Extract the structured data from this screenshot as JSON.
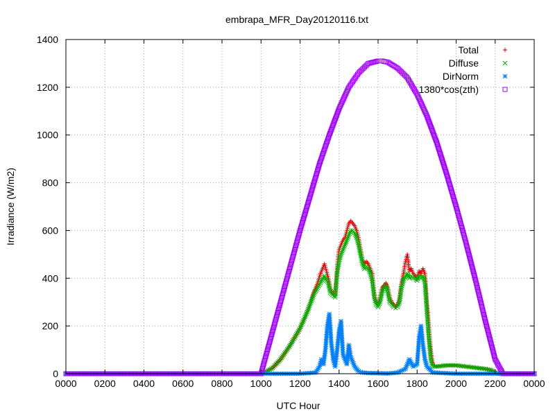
{
  "chart_data": {
    "type": "scatter",
    "title": "embrapa_MFR_Day20120116.txt",
    "xlabel": "UTC Hour",
    "ylabel": "Irradiance (W/m2)",
    "xlim": [
      0,
      2400
    ],
    "ylim": [
      0,
      1400
    ],
    "grid": true,
    "legend_position": "top-right",
    "x_ticks": [
      "0000",
      "0200",
      "0400",
      "0600",
      "0800",
      "1000",
      "1200",
      "1400",
      "1600",
      "1800",
      "2000",
      "2200",
      "0000"
    ],
    "y_ticks": [
      "0",
      "200",
      "400",
      "600",
      "800",
      "1000",
      "1200",
      "1400"
    ],
    "series": [
      {
        "name": "Total",
        "marker": "+",
        "color": "#e00000",
        "x": [
          0,
          1000,
          1030,
          1060,
          1100,
          1150,
          1200,
          1240,
          1270,
          1290,
          1305,
          1315,
          1325,
          1335,
          1345,
          1355,
          1365,
          1380,
          1390,
          1400,
          1410,
          1420,
          1430,
          1440,
          1450,
          1460,
          1470,
          1480,
          1490,
          1500,
          1510,
          1520,
          1530,
          1540,
          1550,
          1560,
          1570,
          1580,
          1590,
          1600,
          1610,
          1620,
          1630,
          1640,
          1650,
          1660,
          1670,
          1680,
          1690,
          1700,
          1710,
          1720,
          1730,
          1740,
          1750,
          1760,
          1770,
          1780,
          1790,
          1800,
          1810,
          1820,
          1830,
          1840,
          1850,
          1860,
          1870,
          1880,
          1890,
          1900,
          1950,
          2000,
          2050,
          2100,
          2150,
          2180,
          2200,
          2220,
          2400
        ],
        "y": [
          0,
          0,
          10,
          25,
          60,
          120,
          190,
          270,
          340,
          380,
          420,
          440,
          460,
          430,
          400,
          360,
          340,
          330,
          450,
          520,
          540,
          560,
          570,
          600,
          630,
          640,
          630,
          620,
          600,
          570,
          520,
          480,
          460,
          470,
          460,
          440,
          420,
          340,
          300,
          290,
          320,
          360,
          370,
          380,
          360,
          320,
          300,
          290,
          280,
          290,
          320,
          380,
          420,
          470,
          500,
          430,
          440,
          420,
          410,
          400,
          430,
          420,
          440,
          420,
          300,
          200,
          100,
          40,
          35,
          30,
          35,
          35,
          30,
          25,
          20,
          15,
          5,
          0,
          0
        ]
      },
      {
        "name": "Diffuse",
        "marker": "x",
        "color": "#00b000",
        "x": [
          0,
          1000,
          1030,
          1060,
          1100,
          1150,
          1200,
          1240,
          1270,
          1290,
          1305,
          1315,
          1325,
          1335,
          1345,
          1355,
          1365,
          1380,
          1390,
          1400,
          1410,
          1420,
          1430,
          1440,
          1450,
          1460,
          1470,
          1480,
          1490,
          1500,
          1510,
          1520,
          1530,
          1540,
          1550,
          1560,
          1570,
          1580,
          1590,
          1600,
          1610,
          1620,
          1630,
          1640,
          1650,
          1660,
          1670,
          1680,
          1690,
          1700,
          1710,
          1720,
          1730,
          1740,
          1750,
          1760,
          1770,
          1780,
          1790,
          1800,
          1810,
          1820,
          1830,
          1840,
          1850,
          1860,
          1870,
          1880,
          1890,
          1900,
          1950,
          2000,
          2050,
          2100,
          2150,
          2180,
          2200,
          2220,
          2400
        ],
        "y": [
          0,
          0,
          10,
          25,
          60,
          120,
          190,
          265,
          330,
          360,
          380,
          400,
          410,
          390,
          380,
          340,
          330,
          320,
          420,
          470,
          500,
          520,
          540,
          560,
          580,
          600,
          600,
          590,
          570,
          540,
          500,
          460,
          440,
          450,
          440,
          420,
          390,
          320,
          290,
          280,
          300,
          340,
          360,
          370,
          340,
          300,
          290,
          280,
          275,
          280,
          300,
          360,
          390,
          410,
          420,
          400,
          410,
          400,
          400,
          390,
          410,
          400,
          410,
          380,
          260,
          150,
          60,
          30,
          30,
          30,
          35,
          35,
          30,
          25,
          20,
          15,
          5,
          0,
          0
        ]
      },
      {
        "name": "DirNorm",
        "marker": "*",
        "color": "#0080ff",
        "x": [
          0,
          1000,
          1100,
          1200,
          1280,
          1300,
          1310,
          1320,
          1330,
          1340,
          1350,
          1360,
          1370,
          1380,
          1390,
          1400,
          1410,
          1420,
          1430,
          1440,
          1450,
          1460,
          1470,
          1480,
          1490,
          1500,
          1520,
          1550,
          1600,
          1650,
          1700,
          1740,
          1760,
          1780,
          1800,
          1810,
          1820,
          1830,
          1840,
          1850,
          1880,
          2000,
          2200,
          2400
        ],
        "y": [
          0,
          0,
          0,
          0,
          5,
          30,
          60,
          40,
          100,
          200,
          250,
          130,
          60,
          30,
          100,
          180,
          220,
          80,
          60,
          40,
          120,
          70,
          50,
          30,
          20,
          10,
          5,
          3,
          2,
          1,
          5,
          20,
          60,
          30,
          40,
          150,
          200,
          120,
          60,
          30,
          5,
          0,
          0,
          0
        ]
      },
      {
        "name": "1380*cos(zth)",
        "marker": "square",
        "color": "#a000ff",
        "x": [
          0,
          1000,
          1050,
          1100,
          1150,
          1200,
          1250,
          1300,
          1350,
          1400,
          1450,
          1500,
          1550,
          1600,
          1620,
          1650,
          1700,
          1750,
          1800,
          1850,
          1900,
          1950,
          2000,
          2050,
          2100,
          2150,
          2200,
          2240,
          2400
        ],
        "y": [
          0,
          0,
          150,
          300,
          450,
          600,
          740,
          880,
          1000,
          1110,
          1200,
          1260,
          1300,
          1310,
          1310,
          1305,
          1280,
          1240,
          1170,
          1080,
          970,
          840,
          700,
          550,
          390,
          220,
          60,
          0,
          0
        ]
      }
    ]
  }
}
